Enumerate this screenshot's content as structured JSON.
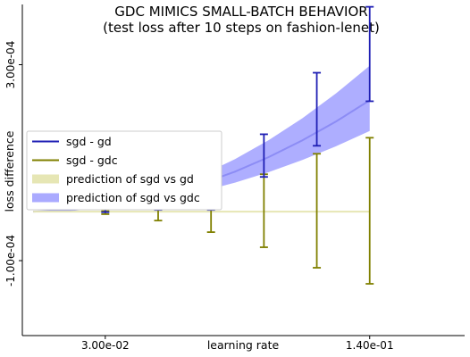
{
  "chart_data": {
    "type": "line",
    "title": "GDC MIMICS SMALL-BATCH BEHAVIOR",
    "subtitle": "(test loss after 10 steps on fashion-lenet)",
    "xlabel": "learning rate",
    "ylabel": "loss difference",
    "x_ticks": [
      {
        "value": 0.03,
        "label": "3.00e-02"
      },
      {
        "value": 0.14,
        "label": "1.40e-01"
      }
    ],
    "y_ticks": [
      {
        "value": -0.0001,
        "label": "-1.00e-04"
      },
      {
        "value": 0.0003,
        "label": "3.00e-04"
      }
    ],
    "xlim": [
      -0.0045,
      0.1795
    ],
    "ylim": [
      -0.000253,
      0.000423
    ],
    "grid": false,
    "legend_position": "center-left",
    "series": [
      {
        "name": "sgd - gd",
        "kind": "errorbar",
        "color": "#1f1fb4",
        "points": [
          {
            "x": 0.03,
            "y": 2e-06,
            "low": -1.1e-06,
            "high": 5.1e-06
          },
          {
            "x": 0.052,
            "y": 1.27e-05,
            "low": 3.6e-06,
            "high": 2.18e-05
          },
          {
            "x": 0.074,
            "y": 3.81e-05,
            "low": 3.6e-06,
            "high": 7.27e-05
          },
          {
            "x": 0.096,
            "y": 0.0001145,
            "low": 7.09e-05,
            "high": 0.000158
          },
          {
            "x": 0.118,
            "y": 0.0002091,
            "low": 0.0001345,
            "high": 0.0002836
          },
          {
            "x": 0.14,
            "y": 0.0003218,
            "low": 0.0002254,
            "high": 0.0004182
          }
        ]
      },
      {
        "name": "sgd - gdc",
        "kind": "errorbar",
        "color": "#808000",
        "points": [
          {
            "x": 0.03,
            "y": -2e-06,
            "low": -5.1e-06,
            "high": 1.1e-06
          },
          {
            "x": 0.052,
            "y": 3.6e-06,
            "low": -1.82e-05,
            "high": 2.54e-05
          },
          {
            "x": 0.074,
            "y": 1.8e-06,
            "low": -4.18e-05,
            "high": 4.54e-05
          },
          {
            "x": 0.096,
            "y": 1.8e-06,
            "low": -7.27e-05,
            "high": 7.64e-05
          },
          {
            "x": 0.118,
            "y": 1.8e-06,
            "low": -0.0001145,
            "high": 0.0001182
          },
          {
            "x": 0.14,
            "y": 1.8e-06,
            "low": -0.0001473,
            "high": 0.0001509
          }
        ]
      },
      {
        "name": "prediction of sgd vs gd",
        "kind": "band",
        "color": "#e6e6b4",
        "x": [
          0.0,
          0.14
        ],
        "low": [
          0.0,
          0.0
        ],
        "high": [
          0.0,
          0.0
        ]
      },
      {
        "name": "prediction of sgd vs gdc",
        "kind": "band",
        "color": "#aaaaff",
        "line_color": "#8c8cf5",
        "x": [
          0.0,
          0.014,
          0.028,
          0.042,
          0.056,
          0.07,
          0.084,
          0.098,
          0.112,
          0.126,
          0.14
        ],
        "mean": [
          0.0,
          2.3e-06,
          9.1e-06,
          2.05e-05,
          3.64e-05,
          5.68e-05,
          8.18e-05,
          0.0001114,
          0.0001455,
          0.0001841,
          0.0002273
        ],
        "low": [
          0.0,
          1.7e-06,
          6.6e-06,
          1.48e-05,
          2.64e-05,
          4.12e-05,
          5.93e-05,
          8.07e-05,
          0.0001055,
          0.0001335,
          0.0001648
        ],
        "high": [
          0.0,
          3e-06,
          1.19e-05,
          2.68e-05,
          4.77e-05,
          7.45e-05,
          0.0001073,
          0.000146,
          0.0001907,
          0.0002414,
          0.000298
        ]
      }
    ]
  }
}
